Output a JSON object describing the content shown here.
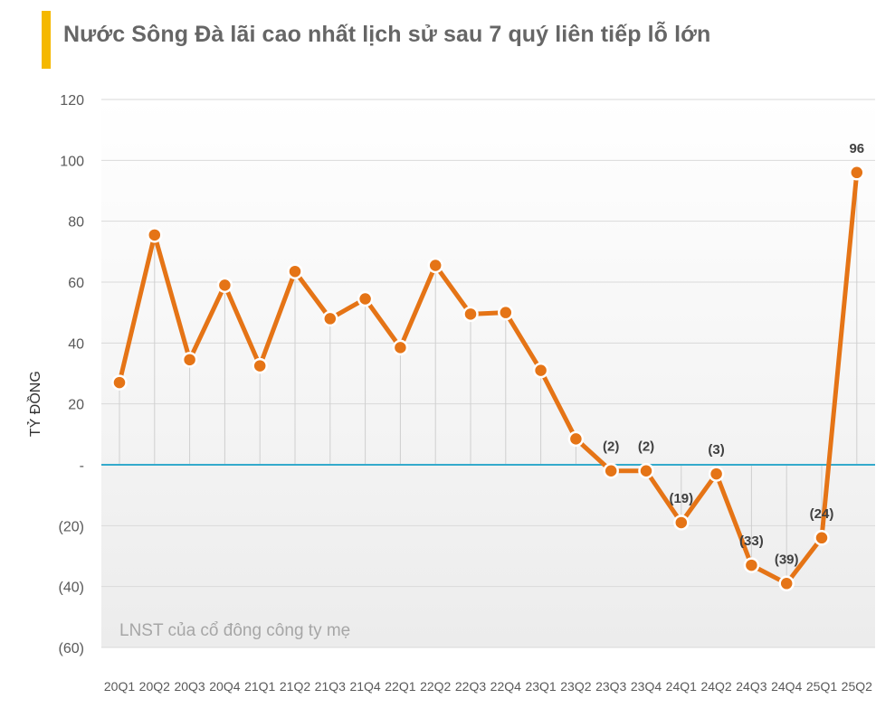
{
  "title": "Nước Sông Đà lãi cao nhất lịch sử sau 7 quý liên tiếp lỗ lớn",
  "colors": {
    "line": "#e57416",
    "zero_line": "#33aacc",
    "title_bar": "#f5b800",
    "grid": "#d9d9d9",
    "text": "#595959"
  },
  "chart_data": {
    "type": "line",
    "title": "Nước Sông Đà lãi cao nhất lịch sử sau 7 quý liên tiếp lỗ lớn",
    "ylabel": "TỶ ĐỒNG",
    "xlabel": "",
    "ylim": [
      -60,
      120
    ],
    "yticks": [
      120,
      100,
      80,
      60,
      40,
      20,
      0,
      -20,
      -40,
      -60
    ],
    "ytick_labels": [
      "120",
      "100",
      "80",
      "60",
      "40",
      "20",
      "-",
      "(20)",
      "(40)",
      "(60)"
    ],
    "grid": true,
    "categories": [
      "20Q1",
      "20Q2",
      "20Q3",
      "20Q4",
      "21Q1",
      "21Q2",
      "21Q3",
      "21Q4",
      "22Q1",
      "22Q2",
      "22Q3",
      "22Q4",
      "23Q1",
      "23Q2",
      "23Q3",
      "23Q4",
      "24Q1",
      "24Q2",
      "24Q3",
      "24Q4",
      "25Q1",
      "25Q2"
    ],
    "series": [
      {
        "name": "LNST của cổ đông công ty mẹ",
        "values": [
          27,
          75.5,
          34.5,
          59,
          32.5,
          63.5,
          48,
          54.5,
          38.5,
          65.5,
          49.5,
          50,
          31,
          8.5,
          -2,
          -2,
          -19,
          -3,
          -33,
          -39,
          -24,
          96
        ]
      }
    ],
    "data_labels": [
      {
        "index": 14,
        "text": "(2)"
      },
      {
        "index": 15,
        "text": "(2)"
      },
      {
        "index": 16,
        "text": "(19)"
      },
      {
        "index": 17,
        "text": "(3)"
      },
      {
        "index": 18,
        "text": "(33)"
      },
      {
        "index": 19,
        "text": "(39)"
      },
      {
        "index": 20,
        "text": "(24)"
      },
      {
        "index": 21,
        "text": "96"
      }
    ],
    "annotation": "LNST của cổ đông công ty mẹ"
  }
}
